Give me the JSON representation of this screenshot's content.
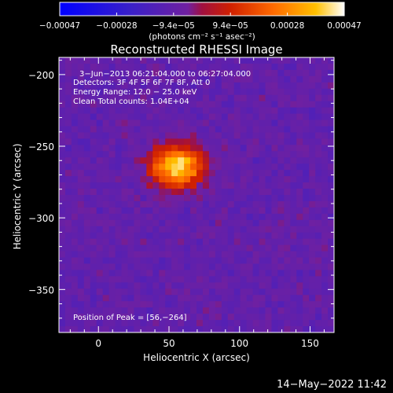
{
  "chart_data": {
    "type": "heatmap",
    "title": "Reconstructed RHESSI Image",
    "xlabel": "Heliocentric X (arcsec)",
    "ylabel": "Heliocentric Y (arcsec)",
    "xlim": [
      -28,
      167
    ],
    "ylim": [
      -380,
      -188
    ],
    "x_ticks": [
      0,
      50,
      100,
      150
    ],
    "x_tick_labels": [
      "0",
      "50",
      "100",
      "150"
    ],
    "y_ticks": [
      -200,
      -250,
      -300,
      -350
    ],
    "y_tick_labels": [
      "−200",
      "−250",
      "−300",
      "−350"
    ],
    "colorbar": {
      "label": "(photons cm⁻² s⁻¹ asec⁻²)",
      "range": [
        -0.00047,
        0.00047
      ],
      "tick_labels": [
        "−0.00047",
        "−0.00028",
        "−9.4e−05",
        "9.4e−05",
        "0.00028",
        "0.00047"
      ],
      "colormap": [
        "#0000ff",
        "#4020c0",
        "#7a20a0",
        "#d02000",
        "#ff6000",
        "#ffb000",
        "#ffffff"
      ]
    },
    "annotations": [
      "3−Jun−2013 06:21:04.000 to 06:27:04.000",
      "Detectors: 3F 4F 5F 6F 7F 8F, Att 0",
      "Energy Range: 12.0 − 25.0 keV",
      "Clean     Total counts: 1.04E+04"
    ],
    "peak_label": "Position of Peak = [56,−264]",
    "peak": [
      56,
      -264
    ]
  },
  "timestamp": "14−May−2022 11:42"
}
